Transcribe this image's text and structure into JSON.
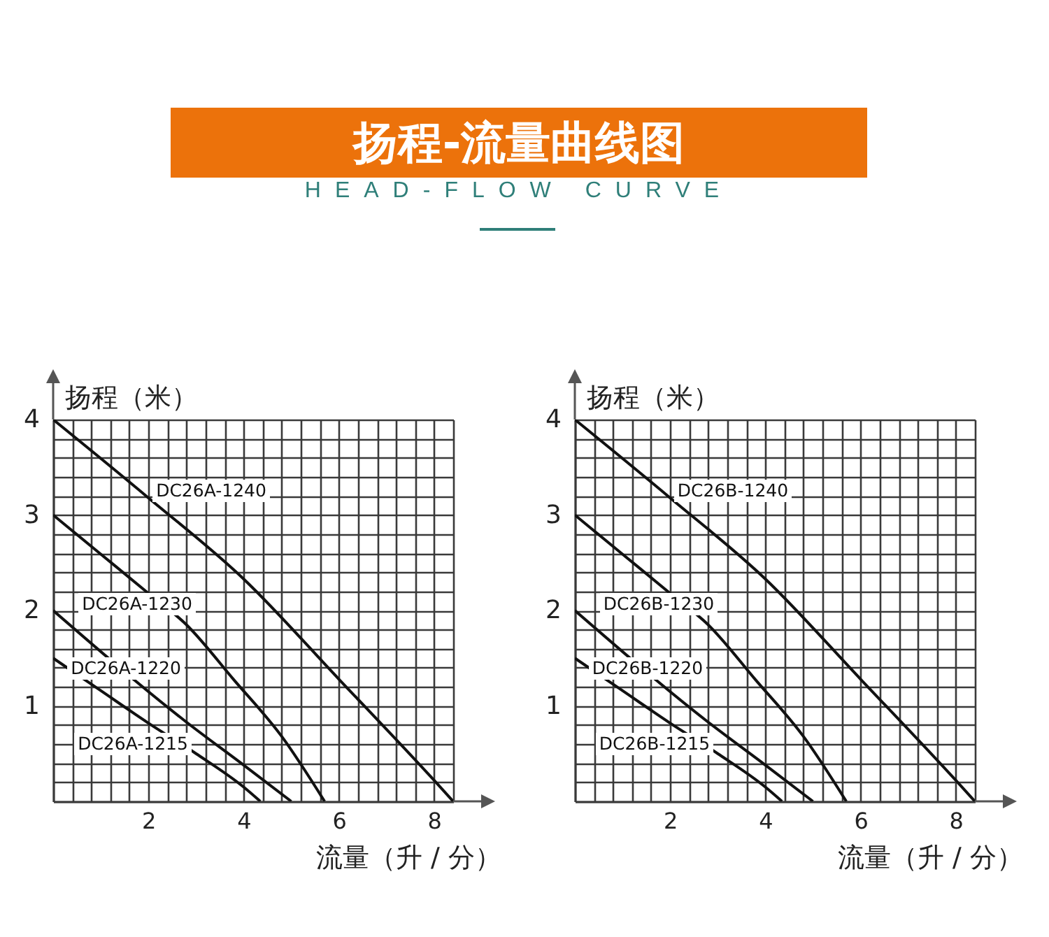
{
  "chart_data": [
    {
      "type": "line",
      "title": "扬程-流量曲线图",
      "subtitle": "HEAD-FLOW CURVE",
      "xlabel": "流量（升 / 分）",
      "ylabel": "扬程（米）",
      "xlim": [
        0,
        8.4
      ],
      "ylim": [
        0,
        4
      ],
      "xticks": [
        {
          "value": 0,
          "label": null
        },
        {
          "value": 0.4,
          "label": null
        },
        {
          "value": 0.8,
          "label": null
        },
        {
          "value": 1.2,
          "label": null
        },
        {
          "value": 1.6,
          "label": null
        },
        2,
        {
          "value": 2.4,
          "label": null
        },
        {
          "value": 2.8,
          "label": null
        },
        {
          "value": 3.2,
          "label": null
        },
        {
          "value": 3.6,
          "label": null
        },
        4,
        {
          "value": 4.4,
          "label": null
        },
        {
          "value": 4.8,
          "label": null
        },
        {
          "value": 5.2,
          "label": null
        },
        {
          "value": 5.6,
          "label": null
        },
        6,
        {
          "value": 6.4,
          "label": null
        },
        {
          "value": 6.8,
          "label": null
        },
        {
          "value": 7.2,
          "label": null
        },
        {
          "value": 7.6,
          "label": null
        },
        8,
        {
          "value": 8.4,
          "label": null
        }
      ],
      "yticks": [
        {
          "value": 0,
          "label": null
        },
        {
          "value": 0.2,
          "label": null
        },
        {
          "value": 0.4,
          "label": null
        },
        {
          "value": 0.6,
          "label": null
        },
        {
          "value": 0.8,
          "label": null
        },
        1,
        {
          "value": 1.2,
          "label": null
        },
        {
          "value": 1.4,
          "label": null
        },
        {
          "value": 1.6,
          "label": null
        },
        {
          "value": 1.8,
          "label": null
        },
        2,
        {
          "value": 2.2,
          "label": null
        },
        {
          "value": 2.4,
          "label": null
        },
        {
          "value": 2.6,
          "label": null
        },
        {
          "value": 2.8,
          "label": null
        },
        3,
        {
          "value": 3.2,
          "label": null
        },
        {
          "value": 3.4,
          "label": null
        },
        {
          "value": 3.6,
          "label": null
        },
        {
          "value": 3.8,
          "label": null
        },
        4
      ],
      "grid": true,
      "marker": "none",
      "line_style": "solid",
      "series": [
        {
          "name": "DC26A-1240",
          "color": "#111111",
          "x": [
            0,
            2,
            4,
            6,
            8,
            8.4
          ],
          "values": [
            4,
            3.18,
            2.33,
            1.28,
            0.22,
            0
          ]
        },
        {
          "name": "DC26A-1230",
          "color": "#111111",
          "x": [
            0,
            1,
            2,
            2.8,
            3.8,
            4.8,
            5.7
          ],
          "values": [
            3,
            2.59,
            2.18,
            1.85,
            1.27,
            0.68,
            0
          ]
        },
        {
          "name": "DC26A-1220",
          "color": "#111111",
          "x": [
            0,
            2.8,
            4,
            5
          ],
          "values": [
            2,
            0.83,
            0.38,
            0
          ]
        },
        {
          "name": "DC26A-1215",
          "color": "#111111",
          "x": [
            0,
            1,
            2,
            3,
            4,
            4.35
          ],
          "values": [
            1.5,
            1.16,
            0.82,
            0.5,
            0.15,
            0
          ]
        }
      ]
    },
    {
      "type": "line",
      "xlabel": "流量（升 / 分）",
      "ylabel": "扬程（米）",
      "xlim": [
        0,
        8.4
      ],
      "ylim": [
        0,
        4
      ],
      "xticks": [
        {
          "value": 0,
          "label": null
        },
        {
          "value": 0.4,
          "label": null
        },
        {
          "value": 0.8,
          "label": null
        },
        {
          "value": 1.2,
          "label": null
        },
        {
          "value": 1.6,
          "label": null
        },
        2,
        {
          "value": 2.4,
          "label": null
        },
        {
          "value": 2.8,
          "label": null
        },
        {
          "value": 3.2,
          "label": null
        },
        {
          "value": 3.6,
          "label": null
        },
        4,
        {
          "value": 4.4,
          "label": null
        },
        {
          "value": 4.8,
          "label": null
        },
        {
          "value": 5.2,
          "label": null
        },
        {
          "value": 5.6,
          "label": null
        },
        6,
        {
          "value": 6.4,
          "label": null
        },
        {
          "value": 6.8,
          "label": null
        },
        {
          "value": 7.2,
          "label": null
        },
        {
          "value": 7.6,
          "label": null
        },
        8,
        {
          "value": 8.4,
          "label": null
        }
      ],
      "yticks": [
        {
          "value": 0,
          "label": null
        },
        {
          "value": 0.2,
          "label": null
        },
        {
          "value": 0.4,
          "label": null
        },
        {
          "value": 0.6,
          "label": null
        },
        {
          "value": 0.8,
          "label": null
        },
        1,
        {
          "value": 1.2,
          "label": null
        },
        {
          "value": 1.4,
          "label": null
        },
        {
          "value": 1.6,
          "label": null
        },
        {
          "value": 1.8,
          "label": null
        },
        2,
        {
          "value": 2.2,
          "label": null
        },
        {
          "value": 2.4,
          "label": null
        },
        {
          "value": 2.6,
          "label": null
        },
        {
          "value": 2.8,
          "label": null
        },
        3,
        {
          "value": 3.2,
          "label": null
        },
        {
          "value": 3.4,
          "label": null
        },
        {
          "value": 3.6,
          "label": null
        },
        {
          "value": 3.8,
          "label": null
        },
        4
      ],
      "grid": true,
      "marker": "none",
      "line_style": "solid",
      "series": [
        {
          "name": "DC26B-1240",
          "color": "#111111",
          "x": [
            0,
            2,
            4,
            6,
            8,
            8.4
          ],
          "values": [
            4,
            3.18,
            2.33,
            1.28,
            0.22,
            0
          ]
        },
        {
          "name": "DC26B-1230",
          "color": "#111111",
          "x": [
            0,
            1,
            2,
            2.8,
            3.8,
            4.8,
            5.7
          ],
          "values": [
            3,
            2.59,
            2.18,
            1.85,
            1.27,
            0.68,
            0
          ]
        },
        {
          "name": "DC26B-1220",
          "color": "#111111",
          "x": [
            0,
            2.8,
            4,
            5
          ],
          "values": [
            2,
            0.83,
            0.38,
            0
          ]
        },
        {
          "name": "DC26B-1215",
          "color": "#111111",
          "x": [
            0,
            1,
            2,
            3,
            4,
            4.35
          ],
          "values": [
            1.5,
            1.16,
            0.82,
            0.5,
            0.15,
            0
          ]
        }
      ]
    }
  ]
}
